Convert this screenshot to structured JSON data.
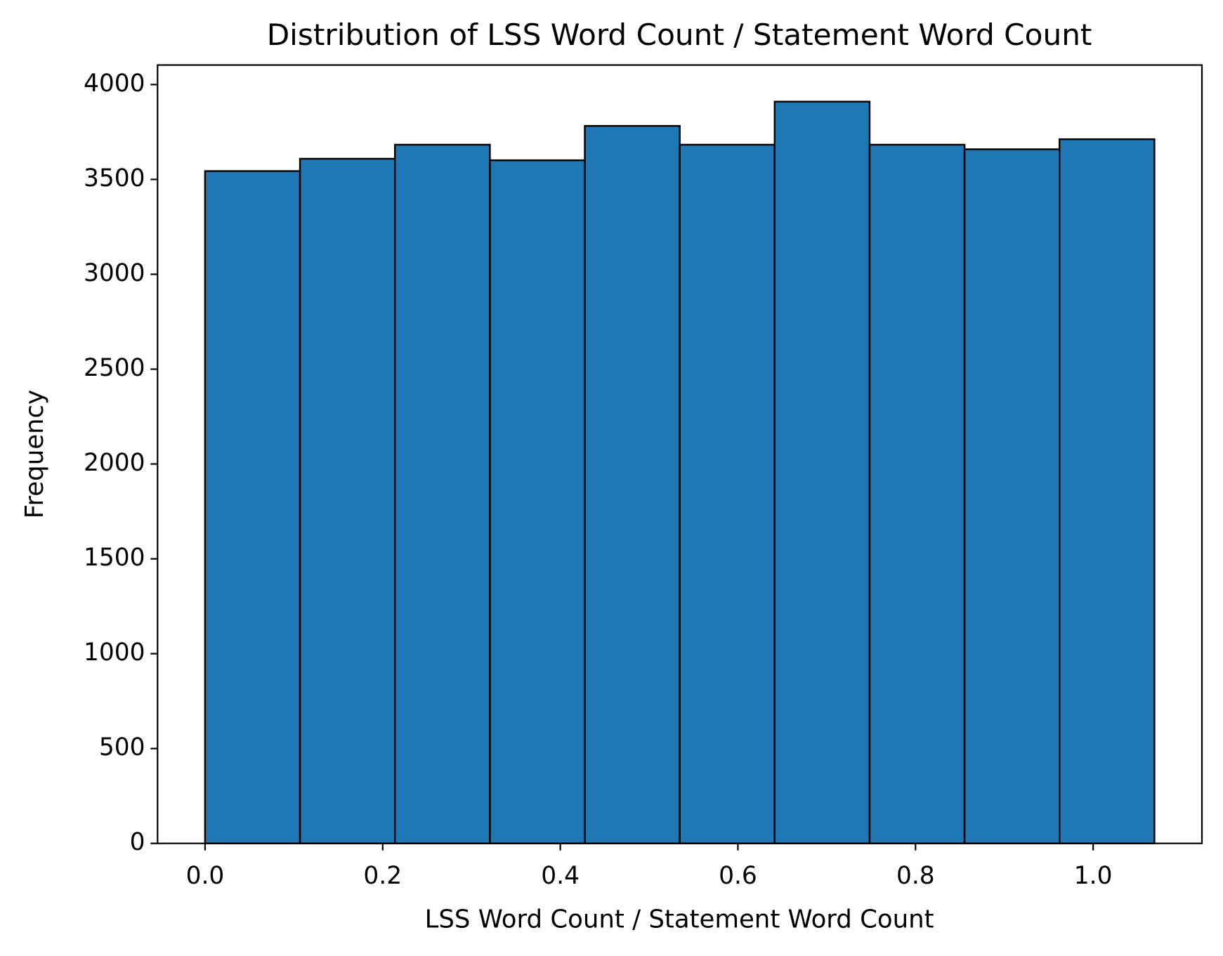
{
  "chart_data": {
    "type": "histogram",
    "title": "Distribution of LSS Word Count / Statement Word Count",
    "x_label": "LSS Word Count / Statement Word Count",
    "y_label": "Frequency",
    "bins": [
      0,
      0.1069,
      0.2138,
      0.3207,
      0.4276,
      0.5345,
      0.6414,
      0.7483,
      0.8552,
      0.9621,
      1.069
    ],
    "counts": [
      3544,
      3609,
      3683,
      3601,
      3782,
      3683,
      3910,
      3683,
      3659,
      3712
    ],
    "color": "#1f77b4",
    "edgecolor": "#000000",
    "xlim": [
      -0.0535,
      1.1225
    ],
    "xticks": [
      {
        "value": 0,
        "label": "0.0"
      },
      {
        "value": 0.2,
        "label": "0.2"
      },
      {
        "value": 0.4,
        "label": "0.4"
      },
      {
        "value": 0.6,
        "label": "0.6"
      },
      {
        "value": 0.8,
        "label": "0.8"
      },
      {
        "value": 1,
        "label": "1.0"
      }
    ],
    "ylim": [
      0,
      4103
    ],
    "yticks": [
      0,
      500,
      1000,
      1500,
      2000,
      2500,
      3000,
      3500,
      4000
    ],
    "grid": false
  }
}
